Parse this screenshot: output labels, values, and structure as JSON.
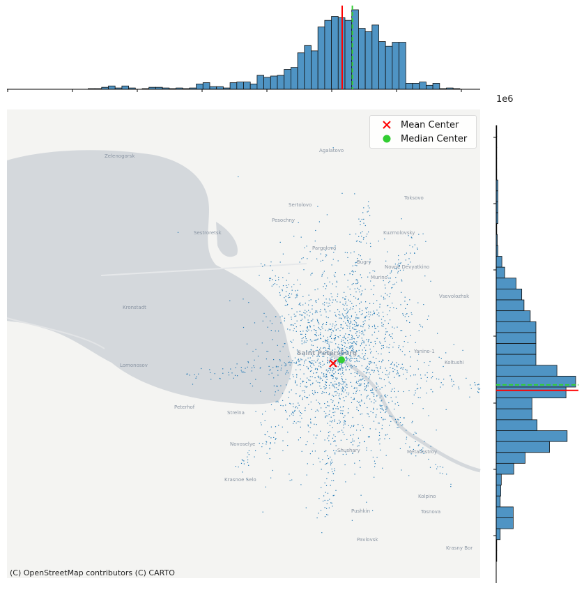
{
  "chart_data": {
    "type": "scatter",
    "subtype": "jointplot-with-basemap",
    "title": "",
    "xlabel": "",
    "ylabel": "",
    "basemap": {
      "provider": "CARTO Positron",
      "attribution": "(C) OpenStreetMap contributors (C) CARTO",
      "place_labels": [
        "Zelenogorsk",
        "Agalatovo",
        "Sertolovo",
        "Toksovo",
        "Sestroretsk",
        "Pesochny",
        "Kuzmolovsky",
        "Pargolovo",
        "Bugry",
        "Novoe Devyatkino",
        "Murino",
        "Vsevolozhsk",
        "Kronstadt",
        "Yanino-1",
        "Koltushi",
        "Lomonosov",
        "Peterhof",
        "Strelna",
        "Novoselye",
        "Shushary",
        "Metallostroy",
        "Krasnoe Selo",
        "Pushkin",
        "Kolpino",
        "Tosnova",
        "Pavlovsk",
        "Krasny Bor",
        "Saint Petersburg"
      ]
    },
    "scatter": {
      "color": "#1f77b4",
      "description_of_extent": "points concentrated in Saint Petersburg centre, spreading along radial roads"
    },
    "mean_center": {
      "label": "Mean Center",
      "marker": "x",
      "color": "#ff0000"
    },
    "median_center": {
      "label": "Median Center",
      "marker": "o",
      "color": "#32cd32"
    },
    "legend": {
      "placement": "upper right",
      "entries": [
        "Mean Center",
        "Median Center"
      ]
    },
    "y_axis_offset_label": "1e6",
    "marginal_x_histogram": {
      "color": "#4f94c4",
      "mean_line_color": "#ff0000",
      "median_line_color": "#32cd32",
      "bin_counts": [
        0,
        0,
        0,
        0,
        0,
        0,
        0,
        0,
        0,
        0,
        0,
        0,
        1,
        1,
        3,
        5,
        2,
        5,
        2,
        0,
        1,
        3,
        3,
        2,
        1,
        2,
        1,
        2,
        8,
        10,
        4,
        4,
        2,
        10,
        11,
        11,
        8,
        21,
        18,
        20,
        21,
        30,
        33,
        55,
        66,
        58,
        94,
        104,
        110,
        108,
        104,
        120,
        92,
        87,
        97,
        72,
        65,
        71,
        71,
        9,
        9,
        11,
        6,
        9,
        1,
        2,
        1,
        0,
        0,
        0
      ],
      "mean_bin_index": 50,
      "median_bin_index": 51.3
    },
    "marginal_y_histogram": {
      "color": "#4f94c4",
      "mean_line_color": "#ff0000",
      "median_line_color": "#32cd32",
      "bin_counts": [
        1,
        1,
        1,
        1,
        1,
        3,
        3,
        3,
        3,
        1,
        2,
        3,
        10,
        15,
        35,
        45,
        49,
        60,
        70,
        70,
        70,
        70,
        107,
        140,
        123,
        63,
        63,
        72,
        125,
        94,
        51,
        31,
        9,
        8,
        7,
        30,
        30,
        7,
        1,
        1
      ],
      "mean_bin_index": 24.3,
      "median_bin_index": 23.8
    }
  }
}
